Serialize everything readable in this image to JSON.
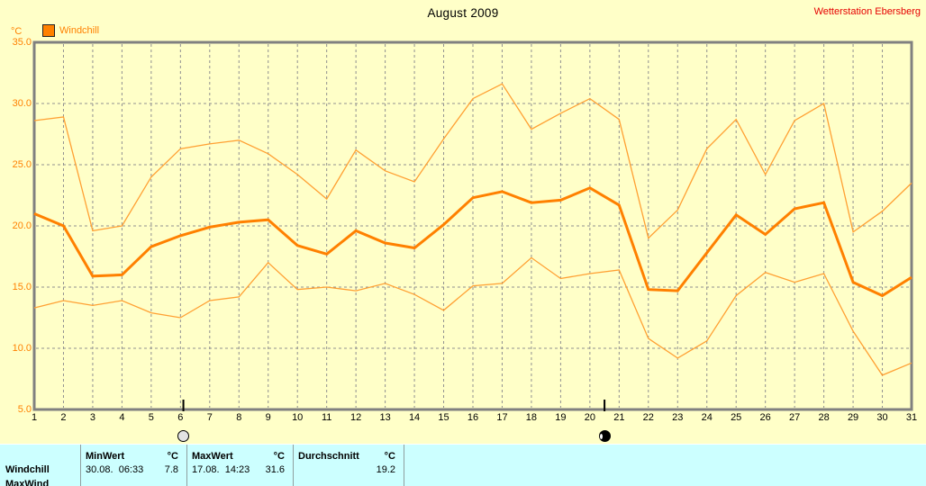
{
  "header": {
    "title": "August 2009",
    "station": "Wetterstation Ebersberg"
  },
  "legend": {
    "unit": "°C",
    "series_label": "Windchill"
  },
  "colors": {
    "background": "#ffffc8",
    "stats_band": "#ccffff",
    "accent_orange": "#ff8000",
    "envelope_orange": "#ffa033",
    "station_red": "#e60000",
    "grid_gray": "#909090",
    "axis_gray": "#808080"
  },
  "chart_data": {
    "type": "line",
    "title": "August 2009",
    "ylabel": "°C",
    "xlabel": "",
    "ylim": [
      5,
      35
    ],
    "yticks": [
      35,
      30,
      25,
      20,
      15,
      10,
      5
    ],
    "grid": true,
    "x": [
      1,
      2,
      3,
      4,
      5,
      6,
      7,
      8,
      9,
      10,
      11,
      12,
      13,
      14,
      15,
      16,
      17,
      18,
      19,
      20,
      21,
      22,
      23,
      24,
      25,
      26,
      27,
      28,
      29,
      30,
      31
    ],
    "series": [
      {
        "id": "max",
        "color": "#ffa033",
        "emphasis": false,
        "values": [
          28.6,
          28.9,
          19.6,
          20.0,
          24.0,
          26.3,
          26.7,
          27.0,
          25.9,
          24.2,
          22.2,
          26.2,
          24.5,
          23.6,
          27.1,
          30.4,
          31.6,
          27.9,
          29.2,
          30.4,
          28.7,
          19.0,
          21.3,
          26.3,
          28.7,
          24.2,
          28.6,
          30.0,
          19.5,
          21.2,
          23.5
        ]
      },
      {
        "id": "windchill-mean",
        "color": "#ff8000",
        "emphasis": true,
        "values": [
          21.0,
          20.0,
          15.9,
          16.0,
          18.3,
          19.2,
          19.9,
          20.3,
          20.5,
          18.4,
          17.7,
          19.6,
          18.6,
          18.2,
          20.1,
          22.3,
          22.8,
          21.9,
          22.1,
          23.1,
          21.7,
          14.8,
          14.7,
          17.8,
          20.9,
          19.3,
          21.4,
          21.9,
          15.4,
          14.3,
          15.8
        ]
      },
      {
        "id": "min",
        "color": "#ffa033",
        "emphasis": false,
        "values": [
          13.3,
          13.9,
          13.5,
          13.9,
          12.9,
          12.5,
          13.9,
          14.2,
          17.0,
          14.8,
          15.0,
          14.7,
          15.3,
          14.4,
          13.1,
          15.1,
          15.3,
          17.4,
          15.7,
          16.1,
          16.4,
          10.8,
          9.2,
          10.6,
          14.3,
          16.2,
          15.4,
          16.1,
          11.4,
          7.8,
          8.8
        ]
      }
    ],
    "moon_markers": [
      {
        "day": 6.1,
        "phase": "full-moon"
      },
      {
        "day": 20.5,
        "phase": "new-moon"
      }
    ]
  },
  "stats_table": {
    "columns": [
      "MinWert",
      "MaxWert",
      "Durchschnitt"
    ],
    "unit": "°C",
    "rows": [
      {
        "label": "Windchill",
        "min_time": "30.08.  06:33",
        "min_value": "7.8",
        "max_time": "17.08.  14:23",
        "max_value": "31.6",
        "avg_value": "19.2"
      }
    ],
    "next_row_label": "MaxWind"
  }
}
